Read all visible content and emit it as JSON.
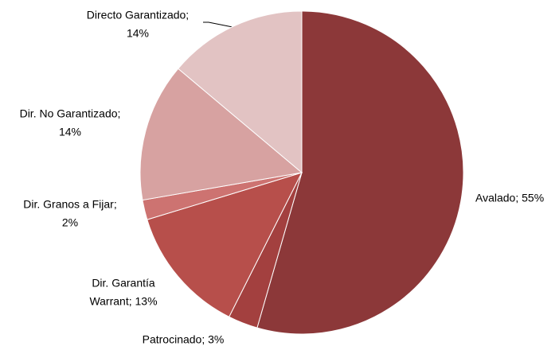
{
  "chart_data": {
    "type": "pie",
    "values": [
      55,
      3,
      13,
      2,
      14,
      14
    ],
    "value_labels": [
      [
        "Avalado; 55%"
      ],
      [
        "Patrocinado; 3%"
      ],
      [
        "Dir. Garantía",
        "Warrant; 13%"
      ],
      [
        "Dir. Granos a Fijar;",
        "2%"
      ],
      [
        "Dir. No Garantizado;",
        "14%"
      ],
      [
        "Directo Garantizado;",
        "14%"
      ]
    ],
    "colors": [
      "#8c3839",
      "#a3403f",
      "#b74f4b",
      "#cd7371",
      "#d7a2a1",
      "#e2c3c3"
    ]
  }
}
